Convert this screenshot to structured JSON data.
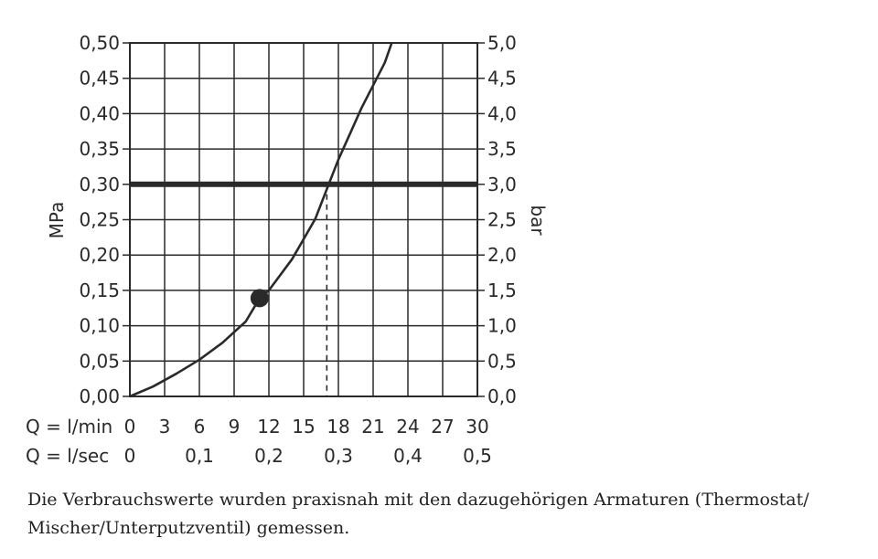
{
  "chart_data": {
    "type": "line",
    "ylabel": "MPa",
    "y2label": "bar",
    "ylim": [
      0,
      0.5
    ],
    "y2lim": [
      0,
      5
    ],
    "yticks": [
      "0,00",
      "0,05",
      "0,10",
      "0,15",
      "0,20",
      "0,25",
      "0,30",
      "0,35",
      "0,40",
      "0,45",
      "0,50"
    ],
    "y2ticks": [
      "0,0",
      "0,5",
      "1,0",
      "1,5",
      "2,0",
      "2,5",
      "3,0",
      "3,5",
      "4,0",
      "4,5",
      "5,0"
    ],
    "xlim": [
      0,
      30
    ],
    "x_row1_label": "Q = l/min",
    "x_row1_ticks": [
      "0",
      "3",
      "6",
      "9",
      "12",
      "15",
      "18",
      "21",
      "24",
      "27",
      "30"
    ],
    "x_row2_label": "Q = l/sec",
    "x_row2_ticks": [
      "0",
      "0,1",
      "0,2",
      "0,3",
      "0,4",
      "0,5"
    ],
    "grid": true,
    "series": [
      {
        "x": [
          0,
          2,
          4,
          6,
          8,
          10,
          11.2,
          12,
          14,
          16,
          17,
          18,
          20,
          22,
          22.6
        ],
        "y": [
          0,
          0.014,
          0.032,
          0.052,
          0.076,
          0.106,
          0.139,
          0.15,
          0.194,
          0.251,
          0.293,
          0.335,
          0.408,
          0.472,
          0.5
        ]
      }
    ],
    "reference_line": {
      "y": 0.3
    },
    "marker_point": {
      "x": 11.2,
      "y": 0.139
    },
    "intersection_x": 17.0
  },
  "caption": "Die Verbrauchswerte wurden praxisnah mit den dazugehörigen Armaturen (Thermostat/ Mischer/Unterputzventil) gemessen."
}
